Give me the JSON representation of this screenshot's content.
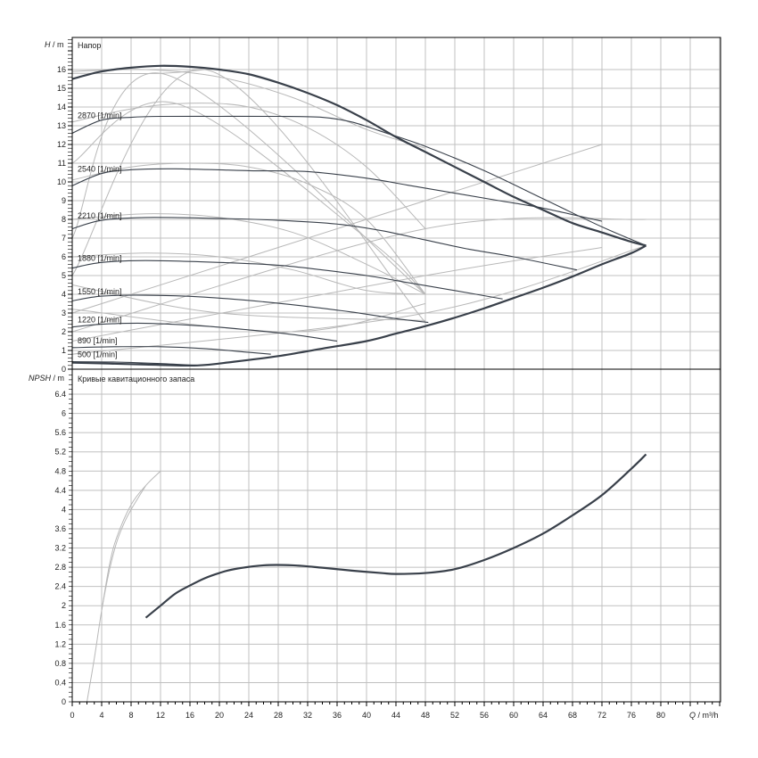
{
  "chart_data": [
    {
      "type": "line",
      "title": "Напор",
      "ylabel_var": "H",
      "ylabel_unit": "m",
      "xlim": [
        0,
        88
      ],
      "ylim": [
        0,
        17.7
      ],
      "yticks": [
        0,
        1,
        2,
        3,
        4,
        5,
        6,
        7,
        8,
        9,
        10,
        11,
        12,
        13,
        14,
        15,
        16
      ],
      "grid": true,
      "series": [
        {
          "role": "envelope-max",
          "x": [
            0,
            4,
            8,
            12,
            16,
            20,
            24,
            28,
            32,
            36,
            40,
            44,
            48,
            52,
            56,
            60,
            64,
            68,
            72,
            76,
            78
          ],
          "y": [
            15.5,
            15.9,
            16.1,
            16.2,
            16.15,
            16.0,
            15.75,
            15.3,
            14.75,
            14.1,
            13.3,
            12.4,
            11.6,
            10.8,
            10.0,
            9.2,
            8.5,
            7.8,
            7.3,
            6.8,
            6.6
          ]
        },
        {
          "role": "envelope-min",
          "x": [
            0,
            5,
            10,
            17,
            22,
            28,
            34,
            40,
            44,
            48,
            52,
            56,
            60,
            64,
            68,
            72,
            76,
            78
          ],
          "y": [
            0.35,
            0.3,
            0.25,
            0.2,
            0.4,
            0.7,
            1.1,
            1.5,
            1.9,
            2.3,
            2.75,
            3.25,
            3.8,
            4.35,
            4.95,
            5.6,
            6.2,
            6.6
          ]
        },
        {
          "name": "2870 [1/min]",
          "x": [
            0,
            4,
            8,
            12,
            20,
            28,
            34,
            38,
            42,
            48,
            56,
            64,
            72,
            78
          ],
          "y": [
            12.6,
            13.3,
            13.45,
            13.5,
            13.5,
            13.5,
            13.45,
            13.2,
            12.7,
            11.9,
            10.6,
            9.1,
            7.6,
            6.6
          ]
        },
        {
          "name": "2540 [1/min]",
          "x": [
            0,
            4,
            8,
            14,
            24,
            32,
            40,
            46,
            52,
            58,
            64,
            72
          ],
          "y": [
            9.8,
            10.45,
            10.65,
            10.7,
            10.6,
            10.55,
            10.2,
            9.8,
            9.4,
            9.0,
            8.6,
            7.9
          ]
        },
        {
          "name": "2210 [1/min]",
          "x": [
            0,
            4,
            10,
            20,
            28,
            36,
            42,
            48,
            54,
            60,
            68.6
          ],
          "y": [
            7.5,
            7.95,
            8.1,
            8.05,
            7.95,
            7.75,
            7.4,
            6.9,
            6.4,
            6.0,
            5.3
          ]
        },
        {
          "name": "1880 [1/min]",
          "x": [
            0,
            4,
            10,
            20,
            28,
            34,
            40,
            46,
            52,
            58.5
          ],
          "y": [
            5.4,
            5.7,
            5.8,
            5.7,
            5.55,
            5.3,
            5.0,
            4.6,
            4.2,
            3.75
          ]
        },
        {
          "name": "1550 [1/min]",
          "x": [
            0,
            4,
            10,
            18,
            26,
            32,
            38,
            44,
            48.4
          ],
          "y": [
            3.65,
            3.9,
            3.95,
            3.85,
            3.6,
            3.35,
            3.05,
            2.7,
            2.5
          ]
        },
        {
          "name": "1220 [1/min]",
          "x": [
            0,
            4,
            10,
            18,
            24,
            30,
            36
          ],
          "y": [
            2.25,
            2.4,
            2.45,
            2.3,
            2.1,
            1.85,
            1.5
          ]
        },
        {
          "name": "890 [1/min]",
          "x": [
            0,
            6,
            12,
            18,
            24,
            27
          ],
          "y": [
            1.15,
            1.2,
            1.2,
            1.1,
            0.9,
            0.8
          ]
        },
        {
          "name": "500 [1/min]",
          "x": [
            0,
            6,
            12,
            17
          ],
          "y": [
            0.4,
            0.38,
            0.3,
            0.2
          ]
        }
      ],
      "aux_lines": [
        {
          "x": [
            0,
            10,
            20,
            30,
            40,
            48
          ],
          "y": [
            15.9,
            16.0,
            15.6,
            14.5,
            12.8,
            11.8
          ]
        },
        {
          "x": [
            0,
            8,
            16,
            24,
            32,
            40,
            48
          ],
          "y": [
            13.2,
            13.9,
            14.2,
            14.0,
            12.9,
            10.8,
            7.5
          ]
        },
        {
          "x": [
            0,
            8,
            16,
            24,
            32,
            40,
            48
          ],
          "y": [
            10.1,
            10.8,
            11.0,
            10.8,
            9.9,
            8.0,
            4.0
          ]
        },
        {
          "x": [
            0,
            10,
            20,
            30,
            40,
            48
          ],
          "y": [
            8.0,
            8.3,
            8.1,
            7.3,
            5.6,
            4.0
          ]
        },
        {
          "x": [
            0,
            10,
            20,
            30,
            40,
            48
          ],
          "y": [
            6.0,
            6.2,
            6.0,
            5.3,
            4.2,
            4.0
          ]
        },
        {
          "x": [
            0,
            12,
            18
          ],
          "y": [
            15.8,
            15.8,
            16.0
          ]
        },
        {
          "x": [
            0,
            12,
            48
          ],
          "y": [
            7.0,
            15.8,
            4.0
          ]
        },
        {
          "x": [
            0,
            18,
            48
          ],
          "y": [
            5.0,
            16.0,
            2.5
          ]
        },
        {
          "x": [
            0,
            14,
            40,
            48
          ],
          "y": [
            11.0,
            14.2,
            7.0,
            4.0
          ]
        },
        {
          "x": [
            0,
            48,
            72
          ],
          "y": [
            3.0,
            9.0,
            12.0
          ]
        },
        {
          "x": [
            0,
            48,
            78
          ],
          "y": [
            2.0,
            7.5,
            8.0
          ]
        },
        {
          "x": [
            0,
            48,
            72
          ],
          "y": [
            1.5,
            5.0,
            6.5
          ]
        },
        {
          "x": [
            0,
            48,
            78
          ],
          "y": [
            0.8,
            3.0,
            6.6
          ]
        },
        {
          "x": [
            0,
            20,
            48
          ],
          "y": [
            4.5,
            3.0,
            2.6
          ]
        },
        {
          "x": [
            0,
            30,
            48
          ],
          "y": [
            3.2,
            2.0,
            3.5
          ]
        }
      ]
    },
    {
      "type": "line",
      "title": "Кривые кавитационного запаса",
      "ylabel_var": "NPSH",
      "ylabel_unit": "m",
      "xlabel_var": "Q",
      "xlabel_unit": "m³/h",
      "xlim": [
        0,
        88
      ],
      "ylim": [
        0,
        6.9
      ],
      "xticks": [
        0,
        4,
        8,
        12,
        16,
        20,
        24,
        28,
        32,
        36,
        40,
        44,
        48,
        52,
        56,
        60,
        64,
        68,
        72,
        76,
        80
      ],
      "yticks": [
        0,
        0.4,
        0.8,
        1.2,
        1.6,
        2,
        2.4,
        2.8,
        3.2,
        3.6,
        4,
        4.4,
        4.8,
        5.2,
        5.6,
        6,
        6.4
      ],
      "grid": true,
      "series": [
        {
          "role": "npsh",
          "x": [
            10,
            12,
            14,
            16,
            18,
            20,
            22,
            26,
            30,
            34,
            38,
            42,
            44,
            48,
            52,
            56,
            60,
            64,
            68,
            72,
            76,
            78
          ],
          "y": [
            1.75,
            2.0,
            2.25,
            2.42,
            2.57,
            2.68,
            2.76,
            2.84,
            2.84,
            2.79,
            2.73,
            2.68,
            2.66,
            2.68,
            2.76,
            2.95,
            3.2,
            3.5,
            3.88,
            4.3,
            4.85,
            5.15
          ]
        }
      ],
      "aux_lines": [
        {
          "x": [
            2,
            3,
            4,
            5,
            6,
            7,
            8,
            10
          ],
          "y": [
            0,
            0.9,
            1.9,
            2.7,
            3.3,
            3.7,
            4.0,
            4.5
          ]
        },
        {
          "x": [
            4,
            5,
            6,
            8,
            10,
            12
          ],
          "y": [
            1.9,
            2.8,
            3.4,
            4.1,
            4.5,
            4.8
          ]
        }
      ]
    }
  ]
}
